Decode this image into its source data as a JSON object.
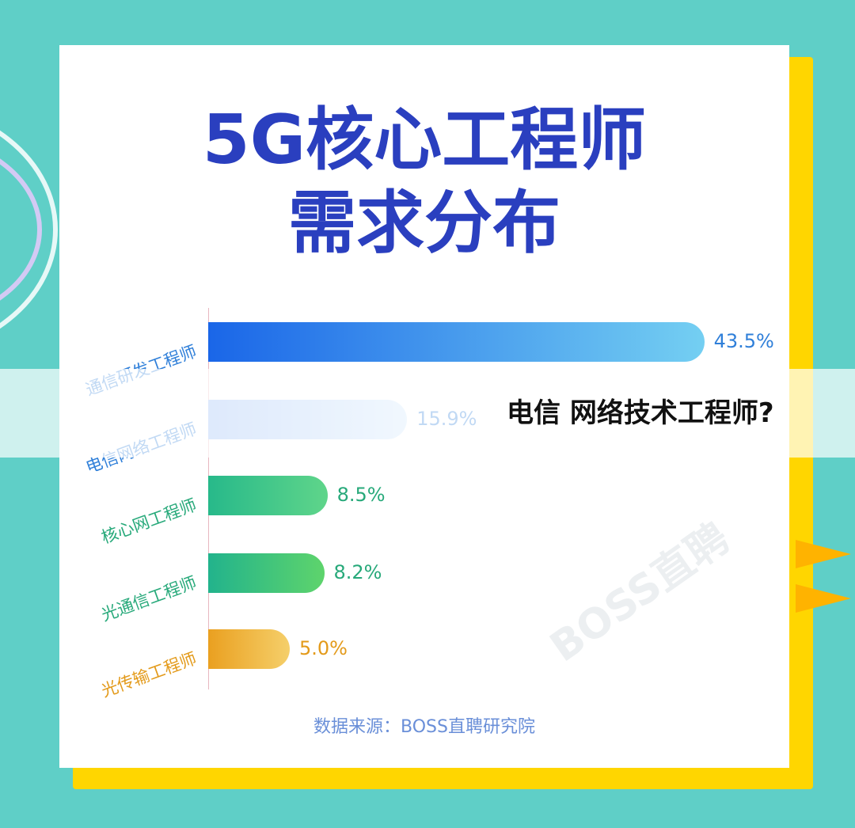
{
  "title_line1": "5G核心工程师",
  "title_line2": "需求分布",
  "source": "数据来源：BOSS直聘研究院",
  "watermark": "BOSS直聘",
  "overlay_caption": "电信 网络技术工程师?",
  "chart_data": {
    "type": "bar",
    "orientation": "horizontal",
    "title": "5G核心工程师需求分布",
    "categories": [
      "通信研发工程师",
      "电信网络工程师",
      "核心网工程师",
      "光通信工程师",
      "光传输工程师"
    ],
    "values": [
      43.5,
      15.9,
      8.5,
      8.2,
      5.0
    ],
    "labels": [
      "43.5%",
      "15.9%",
      "8.5%",
      "8.2%",
      "5.0%"
    ],
    "colors": [
      [
        "#1a66e8",
        "#74cff2"
      ],
      [
        "#8fb6f5",
        "#cfe6fb"
      ],
      [
        "#27b98a",
        "#5fd58a"
      ],
      [
        "#22b38c",
        "#5ed46c"
      ],
      [
        "#eaa020",
        "#f5cf6a"
      ]
    ],
    "label_colors": [
      "#2f7fd9",
      "#2f7fd9",
      "#27a97a",
      "#27a97a",
      "#e39a1a"
    ],
    "grid": false,
    "legend": "none"
  }
}
